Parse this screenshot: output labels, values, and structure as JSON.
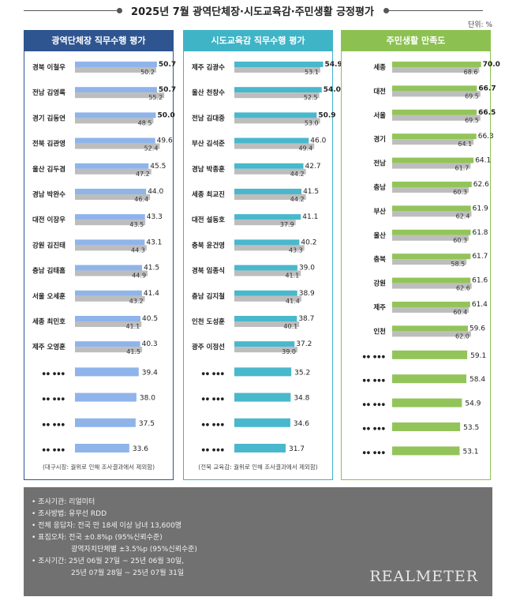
{
  "header": {
    "title": "2025년 7월 광역단체장·시도교육감·주민생활 긍정평가",
    "unit": "단위: %"
  },
  "colors": {
    "panel1": "#2f5590",
    "panel2": "#3fb4c6",
    "panel3": "#8cc152",
    "bar1": "#8fb4ea",
    "bar2": "#49b8cc",
    "bar3": "#93c45a",
    "prev": "#bdbdbd"
  },
  "chart_data": [
    {
      "type": "bar",
      "title": "광역단체장 직무수행 평가",
      "note": "(대구시장: 궐위로 인해 조사결과에서 제외함)",
      "categories": [
        "경북 이철우",
        "전남 김영록",
        "경기 김동연",
        "전북 김관영",
        "울산 김두겸",
        "경남 박완수",
        "대전 이장우",
        "강원 김진태",
        "충남 김태흠",
        "서울 오세훈",
        "세종 최민호",
        "제주 오영훈",
        "●● ●●●",
        "●● ●●●",
        "●● ●●●",
        "●● ●●●"
      ],
      "series": [
        {
          "values": [
            50.7,
            50.7,
            50.0,
            49.6,
            45.5,
            44.0,
            43.3,
            43.1,
            41.5,
            41.4,
            40.5,
            40.3,
            39.4,
            38.0,
            37.5,
            33.6
          ]
        },
        {
          "values": [
            50.2,
            55.2,
            48.5,
            52.4,
            47.2,
            46.4,
            43.5,
            44.3,
            44.9,
            43.2,
            41.1,
            41.5,
            null,
            null,
            null,
            null
          ]
        }
      ],
      "labels_current": [
        "50.7",
        "50.7",
        "50.0",
        "49.6",
        "45.5",
        "44.0",
        "43.3",
        "43.1",
        "41.5",
        "41.4",
        "40.5",
        "40.3",
        "39.4",
        "38.0",
        "37.5",
        "33.6"
      ],
      "labels_prev": [
        "50.2",
        "55.2",
        "48.5",
        "52.4",
        "47.2",
        "46.4",
        "43.5",
        "44.3",
        "44.9",
        "43.2",
        "41.1",
        "41.5",
        "",
        "",
        "",
        ""
      ],
      "ylim": [
        0,
        80
      ]
    },
    {
      "type": "bar",
      "title": "시도교육감 직무수행 평가",
      "note": "(전북 교육감: 궐위로 인해 조사결과에서 제외함)",
      "categories": [
        "제주 김광수",
        "울산 천창수",
        "전남 김대중",
        "부산 김석준",
        "경남 박종훈",
        "세종 최교진",
        "대전 설동호",
        "충북 윤건영",
        "경북 임종식",
        "충남 김지철",
        "인천 도성훈",
        "광주 이정선",
        "●● ●●●",
        "●● ●●●",
        "●● ●●●",
        "●● ●●●"
      ],
      "series": [
        {
          "values": [
            54.9,
            54.0,
            50.9,
            46.0,
            42.7,
            41.5,
            41.1,
            40.2,
            39.0,
            38.9,
            38.7,
            37.2,
            35.2,
            34.8,
            34.6,
            31.7
          ]
        },
        {
          "values": [
            53.1,
            52.5,
            53.0,
            49.4,
            44.2,
            44.2,
            37.9,
            43.3,
            41.1,
            41.4,
            40.1,
            39.0,
            null,
            null,
            null,
            null
          ]
        }
      ],
      "labels_current": [
        "54.9",
        "54.0",
        "50.9",
        "46.0",
        "42.7",
        "41.5",
        "41.1",
        "40.2",
        "39.0",
        "38.9",
        "38.7",
        "37.2",
        "35.2",
        "34.8",
        "34.6",
        "31.7"
      ],
      "labels_prev": [
        "53.1",
        "52.5",
        "53.0",
        "49.4",
        "44.2",
        "44.2",
        "37.9",
        "43.3",
        "41.1",
        "41.4",
        "40.1",
        "39.0",
        "",
        "",
        "",
        ""
      ],
      "ylim": [
        0,
        80
      ]
    },
    {
      "type": "bar",
      "title": "주민생활 만족도",
      "note": "",
      "categories": [
        "세종",
        "대전",
        "서울",
        "경기",
        "전남",
        "충남",
        "부산",
        "울산",
        "충북",
        "강원",
        "제주",
        "인천",
        "●● ●●●",
        "●● ●●●",
        "●● ●●●",
        "●● ●●●",
        "●● ●●●"
      ],
      "series": [
        {
          "values": [
            70.0,
            66.7,
            66.5,
            66.3,
            64.1,
            62.6,
            61.9,
            61.8,
            61.7,
            61.6,
            61.4,
            59.6,
            59.1,
            58.4,
            54.9,
            53.5,
            53.1
          ]
        },
        {
          "values": [
            68.6,
            69.5,
            69.5,
            64.1,
            61.7,
            60.3,
            62.4,
            60.3,
            58.5,
            62.6,
            60.4,
            62.0,
            null,
            null,
            null,
            null,
            null
          ]
        }
      ],
      "labels_current": [
        "70.0",
        "66.7",
        "66.5",
        "66.3",
        "64.1",
        "62.6",
        "61.9",
        "61.8",
        "61.7",
        "61.6",
        "61.4",
        "59.6",
        "59.1",
        "58.4",
        "54.9",
        "53.5",
        "53.1"
      ],
      "labels_prev": [
        "68.6",
        "69.5",
        "69.5",
        "64.1",
        "61.7",
        "60.3",
        "62.4",
        "60.3",
        "58.5",
        "62.6",
        "60.4",
        "62.0",
        "",
        "",
        "",
        "",
        ""
      ],
      "ylim": [
        0,
        80
      ]
    }
  ],
  "footer": {
    "lines": [
      "• 조사기관: 리얼미터",
      "• 조사방법: 유무선 RDD",
      "• 전체 응답자: 전국 만 18세 이상 남녀 13,600명",
      "• 표집오차: 전국 ±0.8%p (95%신뢰수준)",
      "광역자치단체별 ±3.5%p (95%신뢰수준)",
      "• 조사기간: 25년 06월 27일 ~ 25년 06월 30일,",
      "25년 07월 28일 ~ 25년 07월 31일"
    ],
    "logo": "REALMETER"
  }
}
